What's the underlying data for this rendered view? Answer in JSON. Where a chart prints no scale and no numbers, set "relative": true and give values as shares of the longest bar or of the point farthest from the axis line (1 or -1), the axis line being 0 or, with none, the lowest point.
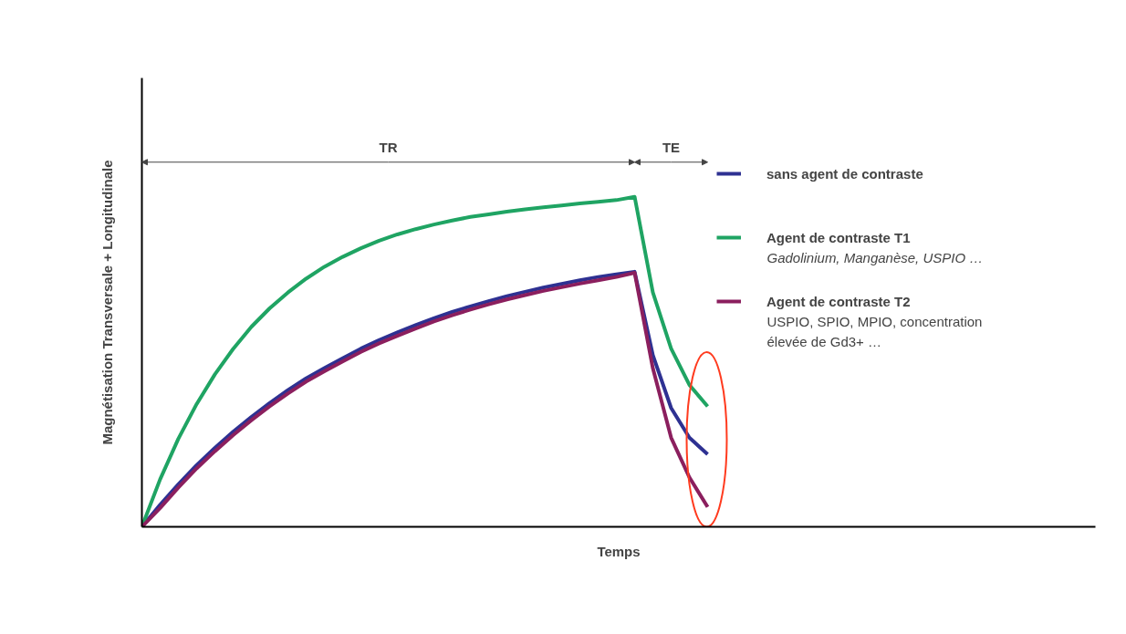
{
  "chart_data": {
    "type": "line",
    "relative": true,
    "xlabel": "Temps",
    "ylabel": "Magnétisation Transversale + Longitudinale",
    "legend": "top right",
    "categories": [
      null,
      null,
      null,
      null,
      null,
      null,
      null,
      null,
      null,
      null,
      null,
      null,
      null,
      null,
      null,
      null,
      null,
      null,
      null,
      null,
      null,
      null,
      null,
      null,
      null,
      null,
      null,
      null,
      null,
      null,
      null,
      null
    ],
    "series": [
      {
        "name": "sans agent de contraste",
        "color": "#2e3192",
        "values": [
          0,
          0.067,
          0.129,
          0.187,
          0.239,
          0.288,
          0.333,
          0.375,
          0.414,
          0.45,
          0.481,
          0.511,
          0.54,
          0.566,
          0.589,
          0.611,
          0.632,
          0.651,
          0.668,
          0.684,
          0.699,
          0.712,
          0.725,
          0.736,
          0.747,
          0.757,
          0.765,
          0.773,
          0.52,
          0.36,
          0.27,
          0.22
        ]
      },
      {
        "name": "Agent de contraste T1",
        "color": "#1fa463",
        "values": [
          0,
          0.144,
          0.267,
          0.372,
          0.462,
          0.539,
          0.606,
          0.662,
          0.71,
          0.752,
          0.788,
          0.818,
          0.844,
          0.867,
          0.886,
          0.902,
          0.916,
          0.928,
          0.939,
          0.947,
          0.955,
          0.962,
          0.968,
          0.974,
          0.98,
          0.985,
          0.99,
          1.0,
          0.71,
          0.54,
          0.43,
          0.365
        ]
      },
      {
        "name": "Agent de contraste T2",
        "color": "#8b1f5e",
        "values": [
          0,
          0.057,
          0.119,
          0.177,
          0.229,
          0.278,
          0.323,
          0.365,
          0.404,
          0.44,
          0.471,
          0.501,
          0.53,
          0.556,
          0.579,
          0.601,
          0.622,
          0.641,
          0.658,
          0.674,
          0.689,
          0.702,
          0.715,
          0.726,
          0.737,
          0.747,
          0.757,
          0.77,
          0.48,
          0.27,
          0.15,
          0.06
        ]
      }
    ],
    "annotations": [
      "TR",
      "TE",
      "Gadolinium, Manganèse, USPIO …",
      "USPIO, SPIO, MPIO, concentration élevée de Gd3+ …"
    ]
  }
}
